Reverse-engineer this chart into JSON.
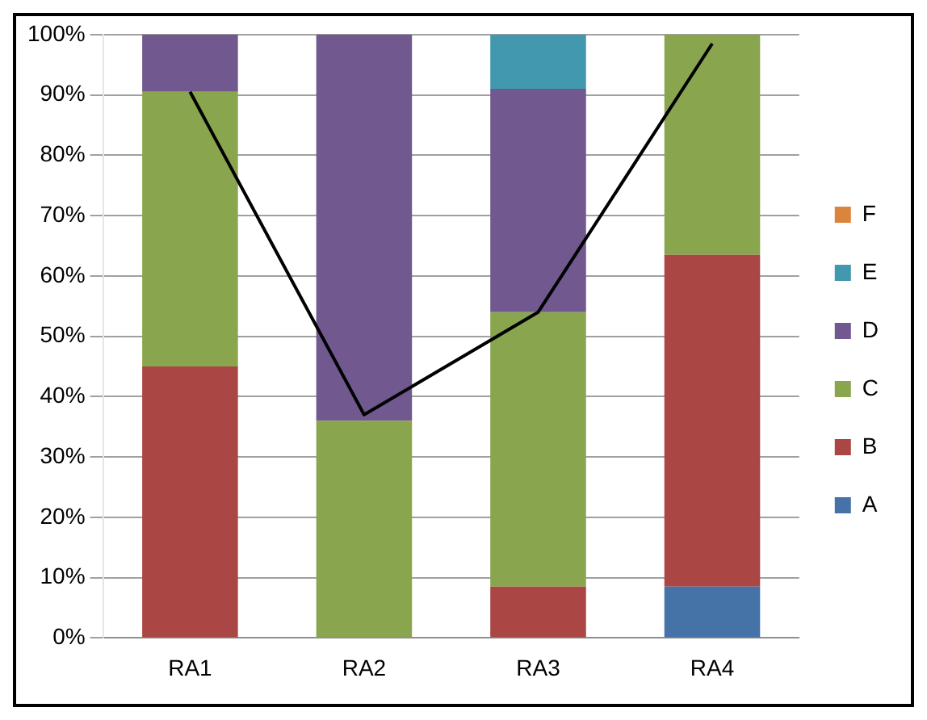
{
  "chart_data": {
    "type": "bar",
    "stacked": true,
    "categories": [
      "RA1",
      "RA2",
      "RA3",
      "RA4"
    ],
    "series": [
      {
        "name": "A",
        "color": "#4572a7",
        "values": [
          0,
          0,
          0,
          8.5
        ]
      },
      {
        "name": "B",
        "color": "#aa4643",
        "values": [
          45,
          0,
          8.5,
          55
        ]
      },
      {
        "name": "C",
        "color": "#89a54e",
        "values": [
          45.5,
          36,
          45.5,
          36.5
        ]
      },
      {
        "name": "D",
        "color": "#71588f",
        "values": [
          9.5,
          64,
          37,
          0
        ]
      },
      {
        "name": "E",
        "color": "#4198af",
        "values": [
          0,
          0,
          9,
          0
        ]
      },
      {
        "name": "F",
        "color": "#db843d",
        "values": [
          0,
          0,
          0,
          0
        ]
      },
      {
        "type": "line",
        "color": "#000000",
        "values": [
          90.5,
          37,
          54,
          98.5
        ]
      }
    ],
    "ylim": [
      0,
      100
    ],
    "yticks": [
      {
        "value": 0,
        "label": "0%"
      },
      {
        "value": 10,
        "label": "10%"
      },
      {
        "value": 20,
        "label": "20%"
      },
      {
        "value": 30,
        "label": "30%"
      },
      {
        "value": 40,
        "label": "40%"
      },
      {
        "value": 50,
        "label": "50%"
      },
      {
        "value": 60,
        "label": "60%"
      },
      {
        "value": 70,
        "label": "70%"
      },
      {
        "value": 80,
        "label": "80%"
      },
      {
        "value": 90,
        "label": "90%"
      },
      {
        "value": 100,
        "label": "100%"
      }
    ],
    "grid": "y",
    "legend": "right",
    "marker": "none",
    "line_style": "solid"
  }
}
